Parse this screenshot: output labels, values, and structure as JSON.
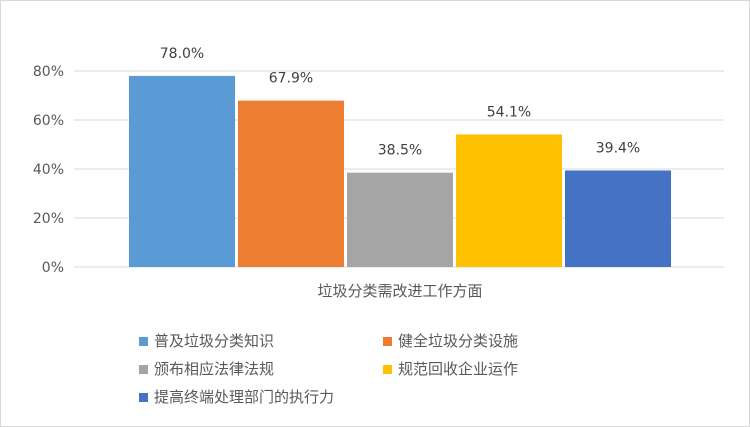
{
  "chart_data": {
    "type": "bar",
    "title": "",
    "xlabel": "",
    "ylabel": "",
    "categories": [
      "垃圾分类需改进工作方面"
    ],
    "series": [
      {
        "name": "普及垃圾分类知识",
        "values": [
          78.0
        ],
        "label": "78.0%",
        "color": "#5b9bd5"
      },
      {
        "name": "健全垃圾分类设施",
        "values": [
          67.9
        ],
        "label": "67.9%",
        "color": "#ed7d31"
      },
      {
        "name": "颁布相应法律法规",
        "values": [
          38.5
        ],
        "label": "38.5%",
        "color": "#a5a5a5"
      },
      {
        "name": "规范回收企业运作",
        "values": [
          54.1
        ],
        "label": "54.1%",
        "color": "#ffc000"
      },
      {
        "name": "提高终端处理部门的执行力",
        "values": [
          39.4
        ],
        "label": "39.4%",
        "color": "#4472c4"
      }
    ],
    "ylim": [
      0,
      80
    ],
    "yticks": [
      0,
      20,
      40,
      60,
      80
    ],
    "ytick_labels": [
      "0%",
      "20%",
      "40%",
      "60%",
      "80%"
    ],
    "grid": true,
    "gridline_color": "#d9d9d9",
    "legend_position": "bottom"
  }
}
